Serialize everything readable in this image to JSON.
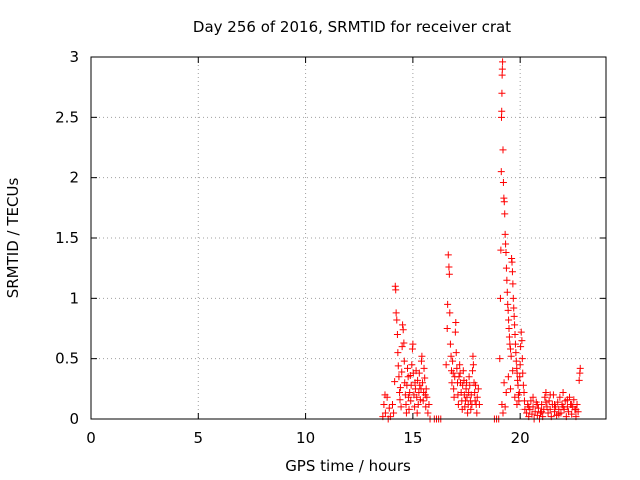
{
  "chart_data": {
    "type": "scatter",
    "title": "Day 256 of 2016, SRMTID for receiver crat",
    "xlabel": "GPS time / hours",
    "ylabel": "SRMTID / TECUs",
    "xlim": [
      0,
      24
    ],
    "ylim": [
      0,
      3
    ],
    "xticks": [
      "0",
      "5",
      "10",
      "15",
      "20"
    ],
    "yticks": [
      "0",
      "0.5",
      "1",
      "1.5",
      "2",
      "2.5",
      "3"
    ],
    "grid": true,
    "marker": "+",
    "colors": {
      "points": "#ff0000",
      "grid": "#a0a0a0",
      "axes": "#000000"
    },
    "points": [
      [
        13.6,
        0.02
      ],
      [
        13.65,
        0.12
      ],
      [
        13.7,
        0.2
      ],
      [
        13.72,
        0.05
      ],
      [
        13.8,
        0.18
      ],
      [
        13.85,
        0.0
      ],
      [
        13.9,
        0.09
      ],
      [
        13.95,
        0.02
      ],
      [
        14.05,
        0.12
      ],
      [
        14.1,
        0.05
      ],
      [
        14.15,
        0.31
      ],
      [
        14.18,
        1.1
      ],
      [
        14.2,
        1.07
      ],
      [
        14.22,
        0.88
      ],
      [
        14.25,
        0.82
      ],
      [
        14.28,
        0.7
      ],
      [
        14.3,
        0.55
      ],
      [
        14.32,
        0.44
      ],
      [
        14.35,
        0.35
      ],
      [
        14.38,
        0.22
      ],
      [
        14.4,
        0.16
      ],
      [
        14.42,
        0.26
      ],
      [
        14.45,
        0.1
      ],
      [
        14.48,
        0.39
      ],
      [
        14.5,
        0.6
      ],
      [
        14.52,
        0.78
      ],
      [
        14.55,
        0.74
      ],
      [
        14.58,
        0.63
      ],
      [
        14.6,
        0.48
      ],
      [
        14.62,
        0.3
      ],
      [
        14.65,
        0.2
      ],
      [
        14.68,
        0.12
      ],
      [
        14.7,
        0.05
      ],
      [
        14.72,
        0.28
      ],
      [
        14.75,
        0.42
      ],
      [
        14.78,
        0.35
      ],
      [
        14.8,
        0.18
      ],
      [
        14.82,
        0.08
      ],
      [
        14.85,
        0.22
      ],
      [
        14.88,
        0.36
      ],
      [
        14.9,
        0.15
      ],
      [
        14.92,
        0.28
      ],
      [
        14.95,
        0.45
      ],
      [
        14.98,
        0.58
      ],
      [
        15.0,
        0.62
      ],
      [
        15.02,
        0.38
      ],
      [
        15.05,
        0.2
      ],
      [
        15.08,
        0.1
      ],
      [
        15.1,
        0.3
      ],
      [
        15.12,
        0.25
      ],
      [
        15.15,
        0.4
      ],
      [
        15.18,
        0.18
      ],
      [
        15.2,
        0.05
      ],
      [
        15.22,
        0.32
      ],
      [
        15.25,
        0.12
      ],
      [
        15.28,
        0.22
      ],
      [
        15.3,
        0.38
      ],
      [
        15.32,
        0.28
      ],
      [
        15.35,
        0.16
      ],
      [
        15.38,
        0.25
      ],
      [
        15.4,
        0.48
      ],
      [
        15.42,
        0.52
      ],
      [
        15.45,
        0.3
      ],
      [
        15.48,
        0.15
      ],
      [
        15.5,
        0.22
      ],
      [
        15.52,
        0.42
      ],
      [
        15.55,
        0.34
      ],
      [
        15.58,
        0.2
      ],
      [
        15.6,
        0.1
      ],
      [
        15.62,
        0.25
      ],
      [
        15.65,
        0.18
      ],
      [
        15.7,
        0.05
      ],
      [
        15.75,
        0.12
      ],
      [
        15.8,
        0.0
      ],
      [
        16.0,
        0.0
      ],
      [
        16.1,
        0.0
      ],
      [
        16.2,
        0.0
      ],
      [
        16.3,
        0.0
      ],
      [
        16.55,
        0.45
      ],
      [
        16.6,
        0.75
      ],
      [
        16.62,
        0.95
      ],
      [
        16.65,
        1.36
      ],
      [
        16.68,
        1.26
      ],
      [
        16.7,
        1.2
      ],
      [
        16.72,
        0.88
      ],
      [
        16.75,
        0.62
      ],
      [
        16.78,
        0.52
      ],
      [
        16.8,
        0.4
      ],
      [
        16.82,
        0.3
      ],
      [
        16.85,
        0.48
      ],
      [
        16.88,
        0.38
      ],
      [
        16.9,
        0.25
      ],
      [
        16.92,
        0.18
      ],
      [
        16.95,
        0.35
      ],
      [
        16.98,
        0.72
      ],
      [
        17.0,
        0.8
      ],
      [
        17.02,
        0.55
      ],
      [
        17.05,
        0.42
      ],
      [
        17.08,
        0.3
      ],
      [
        17.1,
        0.2
      ],
      [
        17.12,
        0.12
      ],
      [
        17.15,
        0.35
      ],
      [
        17.18,
        0.45
      ],
      [
        17.2,
        0.38
      ],
      [
        17.22,
        0.3
      ],
      [
        17.25,
        0.22
      ],
      [
        17.28,
        0.15
      ],
      [
        17.3,
        0.08
      ],
      [
        17.32,
        0.28
      ],
      [
        17.35,
        0.4
      ],
      [
        17.38,
        0.32
      ],
      [
        17.4,
        0.2
      ],
      [
        17.42,
        0.1
      ],
      [
        17.45,
        0.15
      ],
      [
        17.48,
        0.25
      ],
      [
        17.5,
        0.3
      ],
      [
        17.52,
        0.18
      ],
      [
        17.55,
        0.05
      ],
      [
        17.58,
        0.12
      ],
      [
        17.6,
        0.22
      ],
      [
        17.62,
        0.35
      ],
      [
        17.65,
        0.28
      ],
      [
        17.68,
        0.15
      ],
      [
        17.7,
        0.08
      ],
      [
        17.72,
        0.2
      ],
      [
        17.75,
        0.12
      ],
      [
        17.78,
        0.4
      ],
      [
        17.8,
        0.52
      ],
      [
        17.82,
        0.45
      ],
      [
        17.85,
        0.3
      ],
      [
        17.88,
        0.22
      ],
      [
        17.9,
        0.15
      ],
      [
        17.92,
        0.28
      ],
      [
        17.95,
        0.12
      ],
      [
        17.98,
        0.05
      ],
      [
        18.0,
        0.18
      ],
      [
        18.05,
        0.25
      ],
      [
        18.1,
        0.12
      ],
      [
        18.8,
        0.0
      ],
      [
        18.9,
        0.0
      ],
      [
        19.0,
        0.0
      ],
      [
        19.05,
        0.5
      ],
      [
        19.08,
        1.0
      ],
      [
        19.1,
        1.4
      ],
      [
        19.12,
        2.05
      ],
      [
        19.13,
        2.5
      ],
      [
        19.14,
        2.55
      ],
      [
        19.15,
        2.7
      ],
      [
        19.16,
        2.85
      ],
      [
        19.17,
        2.9
      ],
      [
        19.18,
        2.96
      ],
      [
        19.2,
        2.23
      ],
      [
        19.22,
        1.96
      ],
      [
        19.24,
        1.83
      ],
      [
        19.26,
        1.8
      ],
      [
        19.28,
        1.7
      ],
      [
        19.3,
        1.53
      ],
      [
        19.32,
        1.45
      ],
      [
        19.34,
        1.38
      ],
      [
        19.36,
        1.25
      ],
      [
        19.38,
        1.15
      ],
      [
        19.4,
        1.05
      ],
      [
        19.42,
        0.95
      ],
      [
        19.44,
        0.9
      ],
      [
        19.46,
        0.82
      ],
      [
        19.48,
        0.75
      ],
      [
        19.5,
        0.68
      ],
      [
        19.52,
        0.62
      ],
      [
        19.55,
        0.58
      ],
      [
        19.58,
        0.52
      ],
      [
        19.6,
        1.33
      ],
      [
        19.62,
        1.3
      ],
      [
        19.64,
        1.22
      ],
      [
        19.66,
        1.12
      ],
      [
        19.68,
        1.0
      ],
      [
        19.7,
        0.92
      ],
      [
        19.72,
        0.85
      ],
      [
        19.74,
        0.78
      ],
      [
        19.76,
        0.7
      ],
      [
        19.78,
        0.62
      ],
      [
        19.8,
        0.55
      ],
      [
        19.82,
        0.48
      ],
      [
        19.84,
        0.42
      ],
      [
        19.86,
        0.38
      ],
      [
        19.88,
        0.32
      ],
      [
        19.9,
        0.28
      ],
      [
        19.92,
        0.2
      ],
      [
        19.94,
        0.15
      ],
      [
        19.96,
        0.22
      ],
      [
        19.98,
        0.35
      ],
      [
        20.0,
        0.45
      ],
      [
        20.02,
        0.6
      ],
      [
        20.05,
        0.72
      ],
      [
        20.08,
        0.65
      ],
      [
        20.1,
        0.5
      ],
      [
        20.12,
        0.38
      ],
      [
        20.15,
        0.28
      ],
      [
        20.18,
        0.22
      ],
      [
        20.2,
        0.15
      ],
      [
        20.22,
        0.08
      ],
      [
        19.25,
        0.3
      ],
      [
        19.35,
        0.22
      ],
      [
        19.45,
        0.35
      ],
      [
        19.55,
        0.25
      ],
      [
        19.65,
        0.4
      ],
      [
        19.75,
        0.18
      ],
      [
        19.85,
        0.12
      ],
      [
        19.15,
        0.12
      ],
      [
        19.2,
        0.05
      ],
      [
        19.3,
        0.1
      ],
      [
        20.3,
        0.05
      ],
      [
        20.35,
        0.12
      ],
      [
        20.4,
        0.02
      ],
      [
        20.45,
        0.08
      ],
      [
        20.5,
        0.15
      ],
      [
        20.55,
        0.04
      ],
      [
        20.6,
        0.1
      ],
      [
        20.65,
        0.0
      ],
      [
        20.7,
        0.06
      ],
      [
        20.75,
        0.14
      ],
      [
        20.8,
        0.03
      ],
      [
        20.85,
        0.09
      ],
      [
        20.9,
        0.0
      ],
      [
        20.95,
        0.05
      ],
      [
        21.0,
        0.12
      ],
      [
        21.05,
        0.02
      ],
      [
        21.1,
        0.08
      ],
      [
        21.15,
        0.18
      ],
      [
        21.2,
        0.22
      ],
      [
        21.25,
        0.1
      ],
      [
        21.3,
        0.05
      ],
      [
        21.35,
        0.15
      ],
      [
        21.4,
        0.08
      ],
      [
        21.45,
        0.02
      ],
      [
        21.5,
        0.12
      ],
      [
        21.55,
        0.2
      ],
      [
        21.6,
        0.06
      ],
      [
        21.65,
        0.1
      ],
      [
        21.7,
        0.03
      ],
      [
        21.75,
        0.14
      ],
      [
        21.8,
        0.08
      ],
      [
        21.85,
        0.18
      ],
      [
        21.9,
        0.05
      ],
      [
        21.95,
        0.12
      ],
      [
        22.0,
        0.22
      ],
      [
        22.05,
        0.08
      ],
      [
        22.1,
        0.15
      ],
      [
        22.15,
        0.02
      ],
      [
        22.2,
        0.1
      ],
      [
        22.25,
        0.06
      ],
      [
        22.3,
        0.18
      ],
      [
        22.35,
        0.12
      ],
      [
        22.4,
        0.04
      ],
      [
        22.45,
        0.1
      ],
      [
        22.5,
        0.16
      ],
      [
        22.55,
        0.08
      ],
      [
        22.6,
        0.02
      ],
      [
        22.65,
        0.12
      ],
      [
        22.7,
        0.06
      ],
      [
        22.75,
        0.32
      ],
      [
        22.78,
        0.38
      ],
      [
        22.8,
        0.42
      ],
      [
        20.4,
        0.1
      ],
      [
        20.6,
        0.18
      ],
      [
        20.8,
        0.12
      ],
      [
        21.0,
        0.06
      ],
      [
        21.2,
        0.14
      ],
      [
        21.4,
        0.2
      ],
      [
        21.6,
        0.12
      ],
      [
        21.8,
        0.04
      ],
      [
        22.0,
        0.1
      ],
      [
        22.2,
        0.16
      ],
      [
        22.4,
        0.12
      ],
      [
        22.6,
        0.08
      ]
    ]
  }
}
